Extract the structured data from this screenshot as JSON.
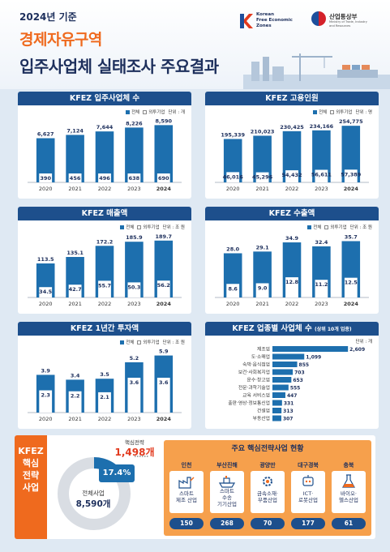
{
  "header": {
    "year_label": "2024년 기준",
    "title_line1": "경제자유구역",
    "title_line2": "입주사업체 실태조사 주요결과",
    "kfez_logo_text": "Korean\nFree Economic\nZones",
    "ministry_name": "산업통상부",
    "ministry_sub": "Ministry of Trade, Industry\nand Resources"
  },
  "legend": {
    "total": "전체",
    "foreign": "외투기업"
  },
  "panels": [
    {
      "title": "KFEZ 입주사업체 수",
      "unit": "단위 : 개"
    },
    {
      "title": "KFEZ 고용인원",
      "unit": "단위 : 명"
    },
    {
      "title": "KFEZ 매출액",
      "unit": "단위 : 조 원"
    },
    {
      "title": "KFEZ 수출액",
      "unit": "단위 : 조 원"
    },
    {
      "title": "KFEZ 1년간 투자액",
      "unit": "단위 : 조 원"
    },
    {
      "title": "KFEZ 업종별 사업체 수",
      "title_sub": "(상위 10개 업종)",
      "unit": "단위 : 개"
    }
  ],
  "chart_data": [
    {
      "type": "bar",
      "title": "KFEZ 입주사업체 수",
      "categories": [
        "2020",
        "2021",
        "2022",
        "2023",
        "2024"
      ],
      "series": [
        {
          "name": "전체",
          "values": [
            6627,
            7124,
            7644,
            8226,
            8590
          ],
          "labels": [
            "6,627",
            "7,124",
            "7,644",
            "8,226",
            "8,590"
          ]
        },
        {
          "name": "외투기업",
          "values": [
            390,
            456,
            496,
            638,
            690
          ],
          "labels": [
            "390",
            "456",
            "496",
            "638",
            "690"
          ]
        }
      ],
      "ylim": [
        0,
        9000
      ]
    },
    {
      "type": "bar",
      "title": "KFEZ 고용인원",
      "categories": [
        "2020",
        "2021",
        "2022",
        "2023",
        "2024"
      ],
      "series": [
        {
          "name": "전체",
          "values": [
            195339,
            210023,
            230425,
            234166,
            254775
          ],
          "labels": [
            "195,339",
            "210,023",
            "230,425",
            "234,166",
            "254,775"
          ]
        },
        {
          "name": "외투기업",
          "values": [
            46016,
            45296,
            54432,
            56611,
            57389
          ],
          "labels": [
            "46,016",
            "45,296",
            "54,432",
            "56,611",
            "57,389"
          ]
        }
      ],
      "ylim": [
        0,
        270000
      ]
    },
    {
      "type": "bar",
      "title": "KFEZ 매출액",
      "categories": [
        "2020",
        "2021",
        "2022",
        "2023",
        "2024"
      ],
      "series": [
        {
          "name": "전체",
          "values": [
            113.5,
            135.1,
            172.2,
            185.9,
            189.7
          ],
          "labels": [
            "113.5",
            "135.1",
            "172.2",
            "185.9",
            "189.7"
          ]
        },
        {
          "name": "외투기업",
          "values": [
            34.5,
            42.7,
            55.7,
            50.3,
            56.2
          ],
          "labels": [
            "34.5",
            "42.7",
            "55.7",
            "50.3",
            "56.2"
          ]
        }
      ],
      "ylim": [
        0,
        200
      ]
    },
    {
      "type": "bar",
      "title": "KFEZ 수출액",
      "categories": [
        "2020",
        "2021",
        "2022",
        "2023",
        "2024"
      ],
      "series": [
        {
          "name": "전체",
          "values": [
            28.0,
            29.1,
            34.9,
            32.4,
            35.7
          ],
          "labels": [
            "28.0",
            "29.1",
            "34.9",
            "32.4",
            "35.7"
          ]
        },
        {
          "name": "외투기업",
          "values": [
            8.6,
            9.0,
            12.8,
            11.2,
            12.5
          ],
          "labels": [
            "8.6",
            "9.0",
            "12.8",
            "11.2",
            "12.5"
          ]
        }
      ],
      "ylim": [
        0,
        38
      ]
    },
    {
      "type": "bar",
      "title": "KFEZ 1년간 투자액",
      "categories": [
        "2020",
        "2021",
        "2022",
        "2023",
        "2024"
      ],
      "series": [
        {
          "name": "전체",
          "values": [
            3.9,
            3.4,
            3.5,
            5.2,
            5.9
          ],
          "labels": [
            "3.9",
            "3.4",
            "3.5",
            "5.2",
            "5.9"
          ]
        },
        {
          "name": "외투기업",
          "values": [
            2.3,
            2.2,
            2.1,
            3.6,
            3.6
          ],
          "labels": [
            "2.3",
            "2.2",
            "2.1",
            "3.6",
            "3.6"
          ]
        }
      ],
      "ylim": [
        0,
        6.2
      ]
    },
    {
      "type": "bar",
      "orientation": "horizontal",
      "title": "KFEZ 업종별 사업체 수",
      "categories": [
        "제조업",
        "도·소매업",
        "숙박·음식점업",
        "보건·사회복지업",
        "운수·창고업",
        "전문·과학기술업",
        "교육 서비스업",
        "출판·영상·정보통신업",
        "건설업",
        "부동산업"
      ],
      "values": [
        2609,
        1099,
        855,
        703,
        653,
        555,
        447,
        331,
        313,
        307
      ],
      "labels": [
        "2,609",
        "1,099",
        "855",
        "703",
        "653",
        "555",
        "447",
        "331",
        "313",
        "307"
      ],
      "xlim": [
        0,
        2800
      ]
    }
  ],
  "core": {
    "side_label": [
      "KFEZ",
      "핵심",
      "전략",
      "사업"
    ],
    "core_label": "핵심전략",
    "core_count": "1,498개",
    "percent_label": "17.4%",
    "percent": 17.4,
    "total_label": "전체사업",
    "total_count": "8,590개"
  },
  "industries": {
    "title": "주요 핵심전략사업 현황",
    "items": [
      {
        "region": "인천",
        "name": "스마트\n제조 산업",
        "count": "150",
        "icon": "factory-robot-icon"
      },
      {
        "region": "부산진해",
        "name": "스마트\n수송\n기기산업",
        "count": "268",
        "icon": "ship-icon"
      },
      {
        "region": "광양만",
        "name": "금속소재·\n부품산업",
        "count": "70",
        "icon": "gear-icon"
      },
      {
        "region": "대구경북",
        "name": "ICT·\n로봇산업",
        "count": "177",
        "icon": "robot-icon"
      },
      {
        "region": "충북",
        "name": "바이오·\n헬스산업",
        "count": "61",
        "icon": "flask-icon"
      }
    ]
  },
  "colors": {
    "navy": "#1d4f8c",
    "bar": "#1d6fae",
    "orange": "#ef6a1e",
    "accent_red": "#e23a1e",
    "panel_bg": "#ffffff",
    "page_bg": "#dfe9f3"
  }
}
